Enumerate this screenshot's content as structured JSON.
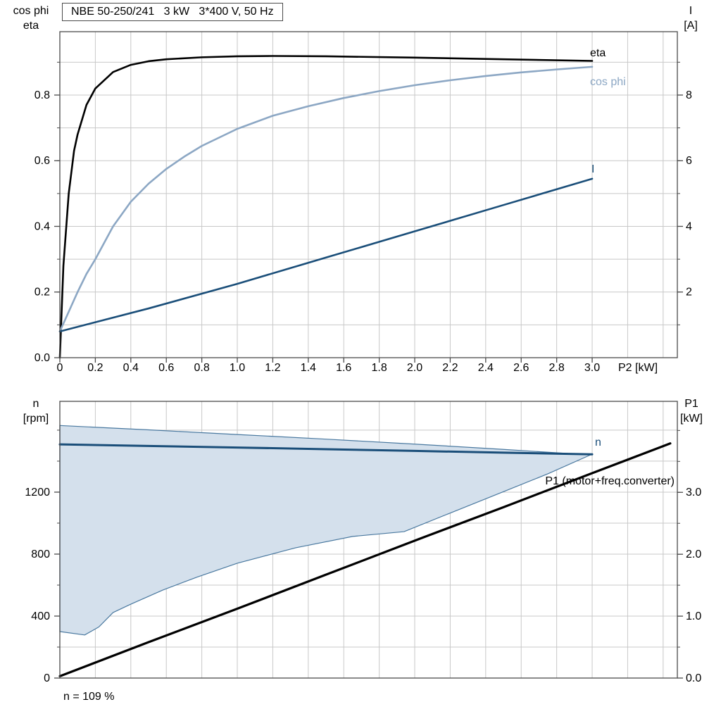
{
  "title": "NBE 50-250/241   3 kW   3*400 V, 50 Hz",
  "labels": {
    "top_left_line1": "cos phi",
    "top_left_line2": "eta",
    "top_right_line1": "I",
    "top_right_line2": "[A]",
    "bottom_left_line1": "n",
    "bottom_left_line2": "[rpm]",
    "bottom_right_line1": "P1",
    "bottom_right_line2": "[kW]",
    "annotation": "n = 109 %"
  },
  "colors": {
    "eta": "#000000",
    "cos_phi": "#8ca7c4",
    "current": "#1a4e79",
    "speed": "#1a4e79",
    "p1": "#000000",
    "envelope_fill": "#d4e0ec",
    "envelope_stroke": "#49789f",
    "grid": "#c8c8c8",
    "axis": "#4a4a4a",
    "text": "#000000"
  },
  "chart_data": [
    {
      "type": "line",
      "title": "NBE 50-250/241   3 kW   3*400 V, 50 Hz",
      "xlabel": "P2 [kW]",
      "ylabel_left": "cos phi / eta",
      "ylabel_right": "I [A]",
      "xlim": [
        0,
        3.48
      ],
      "ylim_left": [
        0,
        0.993
      ],
      "ylim_right": [
        0,
        9.93
      ],
      "grid_x_step": 0.2,
      "grid_y_step_left": 0.1,
      "minor_right_step": 1,
      "x_tick_values": [
        0,
        0.2,
        0.4,
        0.6,
        0.8,
        1.0,
        1.2,
        1.4,
        1.6,
        1.8,
        2.0,
        2.2,
        2.4,
        2.6,
        2.8,
        3.0
      ],
      "x_tick_labels": [
        "0",
        "0.2",
        "0.4",
        "0.6",
        "0.8",
        "1.0",
        "1.2",
        "1.4",
        "1.6",
        "1.8",
        "2.0",
        "2.2",
        "2.4",
        "2.6",
        "2.8",
        "3.0"
      ],
      "left_tick_values": [
        0,
        0.2,
        0.4,
        0.6,
        0.8
      ],
      "left_tick_labels": [
        "0.0",
        "0.2",
        "0.4",
        "0.6",
        "0.8"
      ],
      "right_tick_values": [
        2,
        4,
        6,
        8
      ],
      "right_tick_labels": [
        "2",
        "4",
        "6",
        "8"
      ],
      "series": [
        {
          "name": "eta",
          "axis": "left",
          "color": "eta",
          "x": [
            0,
            0.02,
            0.05,
            0.08,
            0.1,
            0.15,
            0.2,
            0.3,
            0.4,
            0.5,
            0.6,
            0.8,
            1.0,
            1.2,
            1.5,
            2.0,
            2.5,
            3.0
          ],
          "y": [
            0,
            0.28,
            0.5,
            0.63,
            0.68,
            0.77,
            0.82,
            0.87,
            0.892,
            0.903,
            0.909,
            0.915,
            0.918,
            0.919,
            0.918,
            0.914,
            0.909,
            0.904
          ]
        },
        {
          "name": "cos phi",
          "axis": "left",
          "color": "cos_phi",
          "x": [
            0,
            0.05,
            0.1,
            0.15,
            0.2,
            0.3,
            0.4,
            0.5,
            0.6,
            0.7,
            0.8,
            1.0,
            1.2,
            1.4,
            1.6,
            1.8,
            2.0,
            2.2,
            2.4,
            2.6,
            2.8,
            3.0
          ],
          "y": [
            0.08,
            0.14,
            0.2,
            0.255,
            0.3,
            0.4,
            0.475,
            0.53,
            0.575,
            0.612,
            0.645,
            0.697,
            0.737,
            0.766,
            0.791,
            0.812,
            0.83,
            0.845,
            0.858,
            0.869,
            0.878,
            0.886
          ]
        },
        {
          "name": "I",
          "axis": "right",
          "color": "current",
          "x": [
            0,
            0.5,
            1.0,
            1.5,
            2.0,
            2.5,
            3.0
          ],
          "y": [
            0.8,
            1.5,
            2.25,
            3.05,
            3.85,
            4.65,
            5.45
          ]
        }
      ]
    },
    {
      "type": "line",
      "xlabel": "",
      "ylabel_left": "n [rpm]",
      "ylabel_right": "P1 [kW]",
      "xlim": [
        0,
        3.48
      ],
      "ylim_left": [
        0,
        1786
      ],
      "ylim_right": [
        0,
        4.47
      ],
      "grid_x_step": 0.2,
      "grid_y_step_left": 200,
      "minor_right_step": 0.5,
      "x_tick_values": [],
      "x_tick_labels": [],
      "left_tick_values": [
        0,
        400,
        800,
        1200
      ],
      "left_tick_labels": [
        "0",
        "400",
        "800",
        "1200"
      ],
      "right_tick_values": [
        0,
        1,
        2,
        3
      ],
      "right_tick_labels": [
        "0.0",
        "1.0",
        "2.0",
        "3.0"
      ],
      "annotation": "n = 109 %",
      "envelope": {
        "name": "speed-operating-range",
        "axis": "left",
        "top": [
          [
            0,
            1630
          ],
          [
            0.5,
            1602
          ],
          [
            1.0,
            1572
          ],
          [
            1.5,
            1542
          ],
          [
            2.0,
            1510
          ],
          [
            2.5,
            1476
          ],
          [
            2.99,
            1440
          ]
        ],
        "bottom": [
          [
            0,
            300
          ],
          [
            0.14,
            278
          ],
          [
            0.22,
            330
          ],
          [
            0.3,
            423
          ],
          [
            0.4,
            477
          ],
          [
            0.58,
            568
          ],
          [
            0.77,
            650
          ],
          [
            1.0,
            741
          ],
          [
            1.33,
            841
          ],
          [
            1.65,
            914
          ],
          [
            1.94,
            945
          ],
          [
            2.2,
            1065
          ],
          [
            2.5,
            1203
          ],
          [
            2.75,
            1318
          ],
          [
            2.99,
            1440
          ]
        ]
      },
      "series": [
        {
          "name": "n",
          "axis": "left",
          "color": "speed",
          "x": [
            0,
            0.5,
            1.0,
            1.5,
            2.0,
            2.5,
            3.0
          ],
          "y": [
            1508,
            1498,
            1488,
            1477,
            1466,
            1455,
            1444
          ]
        },
        {
          "name": "P1 (motor+freq.converter)",
          "axis": "right",
          "color": "p1",
          "x": [
            0,
            0.5,
            1.0,
            1.5,
            2.0,
            2.5,
            3.0,
            3.44
          ],
          "y": [
            0.03,
            0.58,
            1.12,
            1.67,
            2.22,
            2.76,
            3.31,
            3.79
          ]
        }
      ]
    }
  ]
}
